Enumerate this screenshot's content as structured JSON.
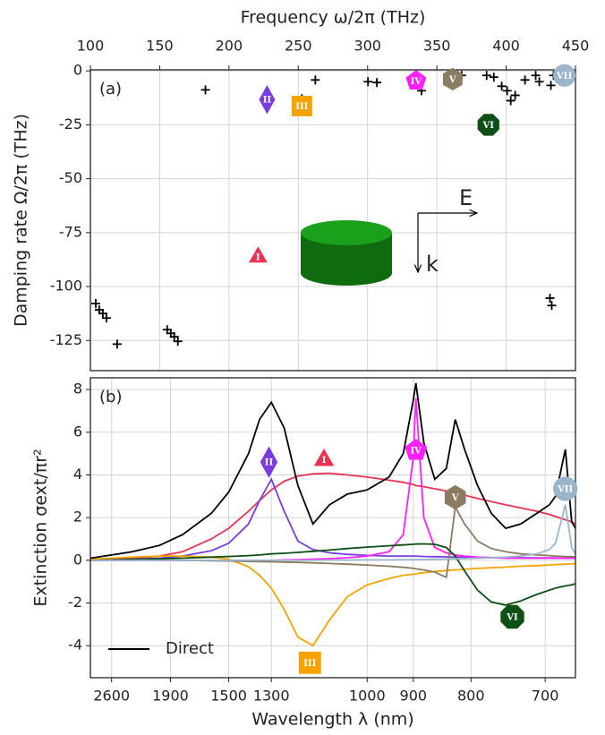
{
  "chart_data": [
    {
      "type": "scatter",
      "panel_label": "(a)",
      "xlabel": "Frequency ω/2π (THz)",
      "ylabel": "Damping rate Ω/2π (THz)",
      "xaxis": "top",
      "xlim": [
        100,
        450
      ],
      "xticks": [
        100,
        150,
        200,
        250,
        300,
        350,
        400,
        450
      ],
      "ylim": [
        -139,
        0.5
      ],
      "yticks": [
        0,
        -25,
        -50,
        -75,
        -100,
        -125
      ],
      "grid": true,
      "series": [
        {
          "color": "#000000",
          "marker": "+",
          "x": [
            103.9,
            106.4,
            109,
            111.6,
            119.3,
            155.4,
            158,
            160.5,
            163.1,
            183,
            252.6,
            262.3,
            300.3,
            306.7,
            335.7,
            338.9,
            367.9,
            385.9,
            391.1,
            396.8,
            400.7,
            403.3,
            406.5,
            413.6,
            421.3,
            423.9,
            432.3,
            434.2,
            431.6,
            432.9
          ],
          "values": [
            -107.9,
            -110.8,
            -112.5,
            -114.6,
            -126.7,
            -120,
            -121.7,
            -123.3,
            -125.4,
            -8.8,
            -12.9,
            -4.2,
            -5,
            -5.4,
            -2.1,
            -9.2,
            -2.1,
            -2.1,
            -2.9,
            -7.1,
            -9.2,
            -13.8,
            -11.3,
            -4.2,
            -2.1,
            -5,
            -6.7,
            -2.1,
            -105.4,
            -108.8
          ]
        }
      ],
      "annotations": [
        {
          "label": "I",
          "x": 221,
          "y": -85.4,
          "shape": "triangle",
          "color": "#ea3352"
        },
        {
          "label": "II",
          "x": 227.5,
          "y": -13.3,
          "shape": "diamond",
          "color": "#7a3ce0"
        },
        {
          "label": "III",
          "x": 252.6,
          "y": -16.3,
          "shape": "square",
          "color": "#f5a300"
        },
        {
          "label": "IV",
          "x": 335,
          "y": -4.6,
          "shape": "pentagon",
          "color": "#ff1fff"
        },
        {
          "label": "V",
          "x": 361.4,
          "y": -3.8,
          "shape": "hexagon",
          "color": "#8b7b63"
        },
        {
          "label": "VI",
          "x": 387.2,
          "y": -25,
          "shape": "octagon",
          "color": "#0d4f14"
        },
        {
          "label": "VII",
          "x": 442,
          "y": -2.1,
          "shape": "circle",
          "color": "#9ab5cc"
        }
      ],
      "inset": {
        "field_label": "E",
        "wavevector_label": "k"
      }
    },
    {
      "type": "line",
      "panel_label": "(b)",
      "xlabel": "Wavelength λ (nm)",
      "ylabel": "Extinction σext/πr²",
      "xaxis": "bottom",
      "xscale": "reciprocal",
      "xlim": [
        2998,
        666
      ],
      "xticks": [
        2600,
        1900,
        1500,
        1300,
        1000,
        900,
        800,
        700
      ],
      "ylim": [
        -5.5,
        8.55
      ],
      "yticks": [
        -4,
        -2,
        0,
        2,
        4,
        6,
        8
      ],
      "grid": true,
      "legend": "lower left",
      "x": [
        2998,
        2600,
        2300,
        2000,
        1800,
        1600,
        1500,
        1400,
        1350,
        1300,
        1250,
        1200,
        1150,
        1100,
        1050,
        1000,
        950,
        920,
        900,
        895,
        880,
        860,
        840,
        825,
        810,
        790,
        770,
        750,
        730,
        710,
        695,
        688,
        677,
        670,
        666
      ],
      "series": [
        {
          "color": "#ea3352",
          "values": [
            0.02,
            0.05,
            0.1,
            0.2,
            0.4,
            1.0,
            1.5,
            2.3,
            2.8,
            3.3,
            3.7,
            3.95,
            4.05,
            4.08,
            4.0,
            3.9,
            3.75,
            3.65,
            3.55,
            3.5,
            3.45,
            3.35,
            3.25,
            3.15,
            3.05,
            2.9,
            2.75,
            2.6,
            2.45,
            2.3,
            2.15,
            2.05,
            1.9,
            1.8,
            1.7
          ]
        },
        {
          "color": "#7a3ce0",
          "values": [
            0,
            0.02,
            0.05,
            0.1,
            0.2,
            0.45,
            0.8,
            1.7,
            2.8,
            3.8,
            2.3,
            0.9,
            0.5,
            0.35,
            0.28,
            0.23,
            0.2,
            0.2,
            0.2,
            0.2,
            0.18,
            0.17,
            0.16,
            0.15,
            0.15,
            0.14,
            0.13,
            0.12,
            0.12,
            0.11,
            0.11,
            0.11,
            0.1,
            0.1,
            0.1
          ]
        },
        {
          "color": "#f5a300",
          "values": [
            0.05,
            0.1,
            0.15,
            0.2,
            0.2,
            0.15,
            0.05,
            -0.3,
            -0.7,
            -1.3,
            -2.3,
            -3.6,
            -4.0,
            -2.8,
            -1.7,
            -1.15,
            -0.85,
            -0.7,
            -0.65,
            -0.63,
            -0.58,
            -0.52,
            -0.48,
            -0.45,
            -0.42,
            -0.38,
            -0.35,
            -0.32,
            -0.28,
            -0.25,
            -0.22,
            -0.2,
            -0.18,
            -0.17,
            -0.15
          ]
        },
        {
          "color": "#ff1fff",
          "values": [
            0,
            0,
            0,
            0,
            0,
            0,
            0,
            0,
            0,
            0,
            0.02,
            0.03,
            0.05,
            0.08,
            0.12,
            0.2,
            0.4,
            1.2,
            4.8,
            7.6,
            2.0,
            0.6,
            0.35,
            0.25,
            0.2,
            0.15,
            0.12,
            0.1,
            0.1,
            0.1,
            0.1,
            0.1,
            0.1,
            0.1,
            0.1
          ]
        },
        {
          "color": "#8b7b63",
          "values": [
            0,
            0,
            0,
            0,
            0,
            -0.02,
            -0.03,
            -0.05,
            -0.06,
            -0.07,
            -0.08,
            -0.1,
            -0.12,
            -0.15,
            -0.18,
            -0.22,
            -0.28,
            -0.33,
            -0.38,
            -0.4,
            -0.45,
            -0.55,
            -0.8,
            2.5,
            1.7,
            0.9,
            0.55,
            0.4,
            0.3,
            0.25,
            0.22,
            0.2,
            0.18,
            0.17,
            0.16
          ]
        },
        {
          "color": "#0d4f14",
          "values": [
            0,
            0.02,
            0.04,
            0.07,
            0.1,
            0.15,
            0.18,
            0.22,
            0.25,
            0.3,
            0.33,
            0.37,
            0.42,
            0.48,
            0.55,
            0.62,
            0.68,
            0.72,
            0.75,
            0.76,
            0.77,
            0.75,
            0.6,
            0.2,
            -0.5,
            -1.4,
            -1.95,
            -2.1,
            -1.9,
            -1.6,
            -1.4,
            -1.3,
            -1.2,
            -1.15,
            -1.1
          ]
        },
        {
          "color": "#9ab5cc",
          "values": [
            0,
            0,
            0,
            0,
            0,
            0,
            0,
            0,
            0,
            0,
            0,
            0,
            0,
            0.01,
            0.01,
            0.02,
            0.02,
            0.03,
            0.03,
            0.03,
            0.04,
            0.05,
            0.06,
            0.07,
            0.08,
            0.1,
            0.12,
            0.15,
            0.2,
            0.3,
            0.5,
            0.8,
            2.6,
            0.6,
            0.3
          ]
        },
        {
          "name": "Direct",
          "color": "#000000",
          "values": [
            0.1,
            0.25,
            0.4,
            0.7,
            1.2,
            2.2,
            3.2,
            5,
            6.6,
            7.4,
            6.2,
            3.5,
            1.7,
            2.6,
            3.1,
            3.3,
            3.9,
            5,
            7.5,
            8.3,
            5.5,
            3.8,
            4.3,
            6.6,
            5.2,
            3.5,
            2.2,
            1.5,
            1.7,
            2.2,
            2.6,
            3,
            5.2,
            1.8,
            1.5
          ]
        }
      ],
      "annotations": [
        {
          "label": "I",
          "x": 1116,
          "y": 4.8,
          "shape": "triangle",
          "color": "#ea3352"
        },
        {
          "label": "II",
          "x": 1310,
          "y": 4.6,
          "shape": "diamond",
          "color": "#7a3ce0"
        },
        {
          "label": "III",
          "x": 1160,
          "y": -4.8,
          "shape": "square",
          "color": "#f5a300"
        },
        {
          "label": "IV",
          "x": 895,
          "y": 5.15,
          "shape": "pentagon",
          "color": "#ff1fff"
        },
        {
          "label": "V",
          "x": 825,
          "y": 2.95,
          "shape": "hexagon",
          "color": "#8b7b63"
        },
        {
          "label": "VI",
          "x": 741,
          "y": -2.65,
          "shape": "octagon",
          "color": "#0d4f14"
        },
        {
          "label": "VII",
          "x": 677,
          "y": 3.35,
          "shape": "circle",
          "color": "#9ab5cc"
        }
      ]
    }
  ]
}
